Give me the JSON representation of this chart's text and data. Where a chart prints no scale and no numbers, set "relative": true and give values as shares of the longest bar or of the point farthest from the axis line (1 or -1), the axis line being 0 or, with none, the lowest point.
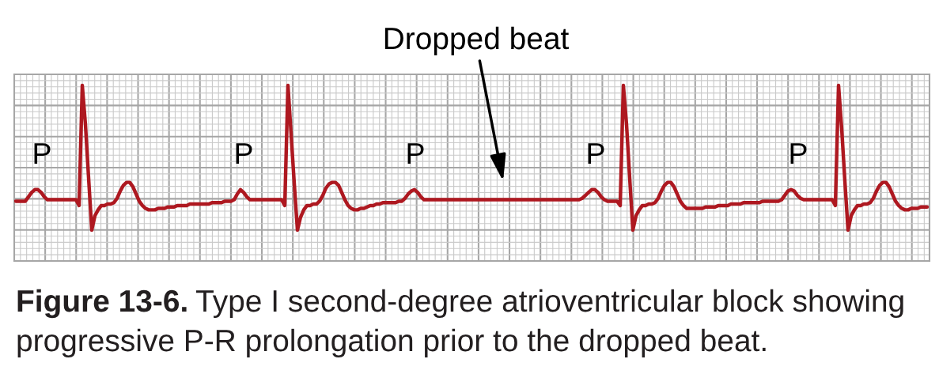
{
  "chart_data": {
    "type": "line",
    "relative": true,
    "grid": true,
    "color": "#ae1820",
    "categories": [
      null,
      null,
      null,
      null,
      null,
      null,
      null,
      null,
      null,
      null,
      null,
      null,
      null,
      null,
      null,
      null,
      null,
      null,
      null,
      null,
      null,
      null,
      null,
      null,
      null,
      null,
      null,
      null,
      null,
      null,
      null,
      null,
      null,
      null,
      null,
      null,
      null,
      null,
      null,
      null,
      null,
      null,
      null,
      null,
      null,
      null,
      null,
      null,
      null,
      null,
      null,
      null,
      null,
      null,
      null,
      null,
      null,
      null,
      null,
      null,
      null,
      null,
      null,
      null,
      null,
      null,
      null,
      null,
      null,
      null,
      null,
      null,
      null,
      null,
      null,
      null,
      null,
      null,
      null,
      null,
      null,
      null,
      null,
      null,
      null,
      null,
      null,
      null,
      null,
      null,
      null,
      null,
      null,
      null,
      null,
      null,
      null,
      null,
      null,
      null,
      null,
      null,
      null,
      null,
      null,
      null,
      null,
      null,
      null,
      null,
      null,
      null,
      null,
      null,
      null,
      null,
      null,
      null,
      null,
      null,
      null,
      null,
      null,
      null,
      null,
      null,
      null,
      null,
      null,
      null,
      null,
      null,
      null,
      null,
      null,
      null,
      null,
      null,
      null,
      null,
      null,
      null,
      null,
      null,
      null,
      null,
      null,
      null,
      null,
      null,
      null,
      null,
      null,
      null,
      null,
      null,
      null,
      null,
      null,
      null,
      null,
      null,
      null,
      null,
      null,
      null,
      null,
      null,
      null,
      null,
      null,
      null,
      null,
      null,
      null,
      null,
      null,
      null,
      null,
      null,
      null,
      null,
      null,
      null,
      null,
      null,
      null,
      null,
      null,
      null,
      null,
      null,
      null,
      null,
      null,
      null,
      null,
      null,
      null,
      null,
      null,
      null,
      null,
      null,
      null,
      null,
      null,
      null,
      null,
      null,
      null,
      null,
      null,
      null,
      null,
      null,
      null,
      null,
      null,
      null,
      null,
      null,
      null,
      null,
      null,
      null,
      null,
      null,
      null,
      null,
      null,
      null,
      null,
      null,
      null,
      null,
      null,
      null,
      null,
      null,
      null,
      null,
      null,
      null,
      null,
      null,
      null,
      null,
      null,
      null,
      null,
      null,
      null,
      null,
      null,
      null,
      null,
      null,
      null,
      null,
      null,
      null,
      null,
      null,
      null,
      null,
      null,
      null,
      null,
      null,
      null,
      null,
      null,
      null,
      null,
      null,
      null,
      null,
      null,
      null,
      null,
      null,
      null,
      null,
      null,
      null,
      null,
      null,
      null
    ],
    "values": [
      0.2,
      0.2,
      0.2,
      0.2,
      0.23,
      0.26,
      0.28,
      0.28,
      0.26,
      0.23,
      0.21,
      0.21,
      0.21,
      0.21,
      0.21,
      0.21,
      0.21,
      0.21,
      0.21,
      0.21,
      0.17,
      1,
      0.73,
      0.36,
      0,
      0.1,
      0.14,
      0.17,
      0.17,
      0.18,
      0.18,
      0.19,
      0.22,
      0.27,
      0.31,
      0.33,
      0.33,
      0.3,
      0.25,
      0.2,
      0.17,
      0.15,
      0.14,
      0.14,
      0.14,
      0.15,
      0.15,
      0.15,
      0.16,
      0.16,
      0.16,
      0.17,
      0.17,
      0.17,
      0.17,
      0.18,
      0.18,
      0.18,
      0.18,
      0.18,
      0.18,
      0.18,
      0.19,
      0.19,
      0.19,
      0.19,
      0.2,
      0.2,
      0.2,
      0.21,
      0.25,
      0.28,
      0.26,
      0.23,
      0.21,
      0.21,
      0.21,
      0.21,
      0.21,
      0.21,
      0.21,
      0.21,
      0.21,
      0.21,
      0.21,
      0.17,
      1,
      0.66,
      0.32,
      0,
      0.09,
      0.14,
      0.17,
      0.17,
      0.18,
      0.18,
      0.2,
      0.24,
      0.29,
      0.32,
      0.33,
      0.33,
      0.31,
      0.26,
      0.21,
      0.17,
      0.15,
      0.14,
      0.14,
      0.15,
      0.15,
      0.16,
      0.17,
      0.17,
      0.18,
      0.18,
      0.19,
      0.19,
      0.19,
      0.19,
      0.19,
      0.2,
      0.2,
      0.22,
      0.25,
      0.27,
      0.28,
      0.26,
      0.23,
      0.21,
      0.21,
      0.21,
      0.21,
      0.21,
      0.21,
      0.21,
      0.21,
      0.21,
      0.21,
      0.21,
      0.21,
      0.21,
      0.21,
      0.21,
      0.21,
      0.21,
      0.21,
      0.21,
      0.21,
      0.21,
      0.21,
      0.21,
      0.21,
      0.21,
      0.21,
      0.21,
      0.21,
      0.21,
      0.21,
      0.21,
      0.21,
      0.21,
      0.21,
      0.21,
      0.21,
      0.21,
      0.21,
      0.21,
      0.21,
      0.21,
      0.21,
      0.21,
      0.21,
      0.21,
      0.21,
      0.21,
      0.21,
      0.21,
      0.21,
      0.22,
      0.24,
      0.26,
      0.28,
      0.28,
      0.26,
      0.23,
      0.21,
      0.2,
      0.2,
      0.2,
      0.2,
      0.17,
      1,
      0.73,
      0.36,
      0,
      0.1,
      0.14,
      0.17,
      0.17,
      0.18,
      0.18,
      0.19,
      0.22,
      0.27,
      0.31,
      0.33,
      0.33,
      0.3,
      0.25,
      0.2,
      0.17,
      0.15,
      0.15,
      0.15,
      0.15,
      0.15,
      0.15,
      0.16,
      0.16,
      0.16,
      0.16,
      0.17,
      0.17,
      0.17,
      0.17,
      0.18,
      0.18,
      0.18,
      0.18,
      0.19,
      0.19,
      0.19,
      0.19,
      0.19,
      0.19,
      0.2,
      0.2,
      0.2,
      0.2,
      0.2,
      0.2,
      0.21,
      0.24,
      0.27,
      0.28,
      0.27,
      0.24,
      0.22,
      0.21,
      0.21,
      0.21,
      0.21,
      0.21,
      0.21,
      0.21,
      0.21,
      0.21,
      0.21,
      0.17,
      1,
      0.7,
      0.34,
      0,
      0.1,
      0.14,
      0.17,
      0.17,
      0.18,
      0.18,
      0.19,
      0.22,
      0.27,
      0.31,
      0.33,
      0.33,
      0.3,
      0.25,
      0.2,
      0.17,
      0.15,
      0.14,
      0.14,
      0.15,
      0.15,
      0.15,
      0.16,
      0.16,
      0.16
    ],
    "annotations": [
      "Dropped beat",
      "P",
      "P",
      "P",
      "P",
      "P",
      "Figure 13-6.",
      "Type I second-degree atrioventricular block showing",
      "progressive P-R prolongation prior to the dropped beat."
    ]
  }
}
